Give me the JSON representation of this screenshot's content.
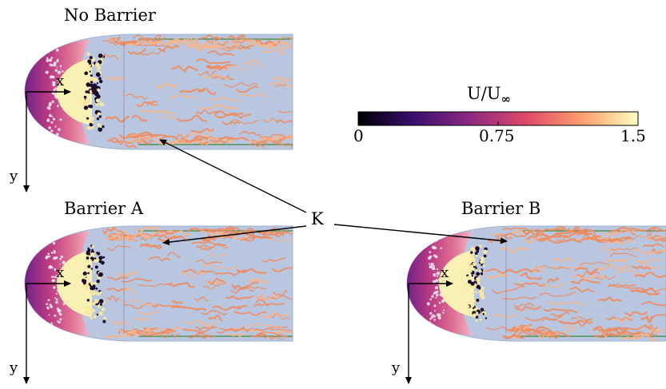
{
  "panels": [
    {
      "title": "No Barrier",
      "x_axis": "x",
      "y_axis": "y"
    },
    {
      "title": "Barrier A",
      "x_axis": "x",
      "y_axis": "y"
    },
    {
      "title": "Barrier B",
      "x_axis": "x",
      "y_axis": "y"
    }
  ],
  "colorbar": {
    "label_main": "U/U",
    "label_sub": "∞",
    "ticks": [
      "0",
      "0.75",
      "1.5"
    ],
    "stops": [
      "#000004",
      "#3b0f70",
      "#8c2981",
      "#de4968",
      "#fe9f6d",
      "#fcfdbf"
    ]
  },
  "annotation": {
    "label": "K"
  },
  "colors": {
    "body": "#b9c6df",
    "body_edge": "#9fb0cf",
    "wake_outer": "#7a1e86",
    "wake_inner": "#c23e7a",
    "core": "#f9f0b4",
    "vortex": "#f08a5d",
    "stripe": "#3f8a3a"
  }
}
